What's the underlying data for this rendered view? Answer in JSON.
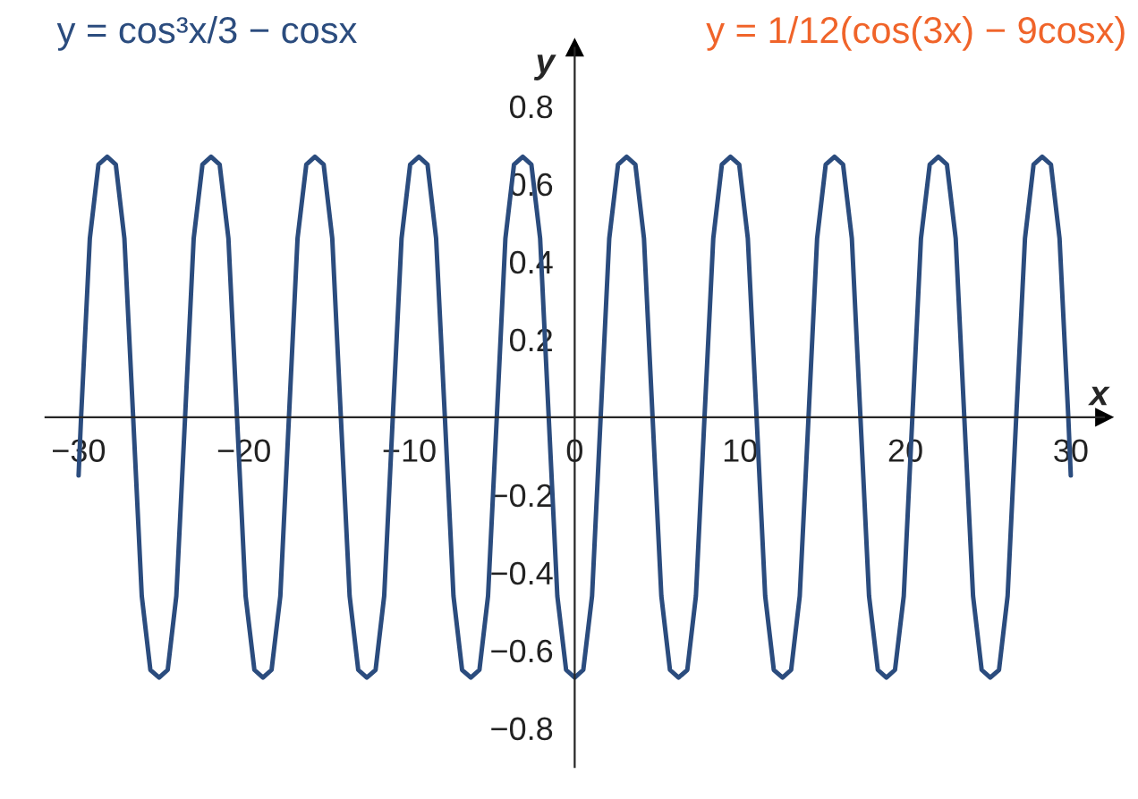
{
  "chart_data": {
    "type": "line",
    "xlabel": "x",
    "ylabel": "y",
    "annotations": [
      "y = cos³x/3 − cosx",
      "y = 1/12(cos(3x) − 9cosx)"
    ],
    "series": [
      {
        "color": "#2b4c7e",
        "x": [
          -30,
          -29.85,
          -29.32,
          -28.8,
          -28.27,
          -27.75,
          -27.23,
          -26.7,
          -26.18,
          -25.66,
          -25.13,
          -24.61,
          -24.09,
          -23.56,
          -23.04,
          -22.51,
          -21.99,
          -21.47,
          -20.94,
          -20.42,
          -19.9,
          -19.37,
          -18.85,
          -18.33,
          -17.8,
          -17.28,
          -16.76,
          -16.23,
          -15.71,
          -15.18,
          -14.66,
          -14.14,
          -13.61,
          -13.09,
          -12.57,
          -12.04,
          -11.52,
          -11.0,
          -10.47,
          -9.95,
          -9.42,
          -8.9,
          -8.38,
          -7.85,
          -7.33,
          -6.81,
          -6.28,
          -5.76,
          -5.24,
          -4.71,
          -4.19,
          -3.67,
          -3.14,
          -2.62,
          -2.09,
          -1.57,
          -1.05,
          -0.52,
          0,
          0.52,
          1.05,
          1.57,
          2.09,
          2.62,
          3.14,
          3.67,
          4.19,
          4.71,
          5.24,
          5.76,
          6.28,
          6.81,
          7.33,
          7.85,
          8.38,
          8.9,
          9.42,
          9.95,
          10.47,
          11.0,
          11.52,
          12.04,
          12.57,
          13.09,
          13.61,
          14.14,
          14.66,
          15.18,
          15.71,
          16.23,
          16.76,
          17.28,
          17.8,
          18.33,
          18.85,
          19.37,
          19.9,
          20.42,
          20.94,
          21.47,
          21.99,
          22.51,
          23.04,
          23.56,
          24.09,
          24.61,
          25.13,
          25.66,
          26.18,
          26.7,
          27.23,
          27.75,
          28.27,
          28.8,
          29.32,
          29.85,
          30
        ],
        "values": [
          -0.15,
          0,
          0.46,
          0.65,
          0.67,
          0.65,
          0.46,
          0,
          -0.46,
          -0.65,
          -0.67,
          -0.65,
          -0.46,
          0,
          0.46,
          0.65,
          0.67,
          0.65,
          0.46,
          0,
          -0.46,
          -0.65,
          -0.67,
          -0.65,
          -0.46,
          0,
          0.46,
          0.65,
          0.67,
          0.65,
          0.46,
          0,
          -0.46,
          -0.65,
          -0.67,
          -0.65,
          -0.46,
          0,
          0.46,
          0.65,
          0.67,
          0.65,
          0.46,
          0,
          -0.46,
          -0.65,
          -0.67,
          -0.65,
          -0.46,
          0,
          0.46,
          0.65,
          0.67,
          0.65,
          0.46,
          0,
          -0.46,
          -0.65,
          -0.67,
          -0.65,
          -0.46,
          0,
          0.46,
          0.65,
          0.67,
          0.65,
          0.46,
          0,
          -0.46,
          -0.65,
          -0.67,
          -0.65,
          -0.46,
          0,
          0.46,
          0.65,
          0.67,
          0.65,
          0.46,
          0,
          -0.46,
          -0.65,
          -0.67,
          -0.65,
          -0.46,
          0,
          0.46,
          0.65,
          0.67,
          0.65,
          0.46,
          0,
          -0.46,
          -0.65,
          -0.67,
          -0.65,
          -0.46,
          0,
          0.46,
          0.65,
          0.67,
          0.65,
          0.46,
          0,
          -0.46,
          -0.65,
          -0.67,
          -0.65,
          -0.46,
          0,
          0.46,
          0.65,
          0.67,
          0.65,
          0.46,
          0,
          -0.15
        ]
      }
    ],
    "xlim": [
      -32,
      32
    ],
    "ylim": [
      -0.9,
      0.95
    ],
    "xticks": [
      {
        "value": -30,
        "label": "−30"
      },
      {
        "value": -20,
        "label": "−20"
      },
      {
        "value": -10,
        "label": "−10"
      },
      {
        "value": 0,
        "label": "0"
      },
      10,
      20,
      30
    ],
    "yticks": [
      {
        "value": -0.8,
        "label": "−0.8"
      },
      {
        "value": -0.6,
        "label": "−0.6"
      },
      {
        "value": -0.4,
        "label": "−0.4"
      },
      {
        "value": -0.2,
        "label": "−0.2"
      },
      0.2,
      0.4,
      0.6,
      0.8
    ],
    "grid": false,
    "legend": false,
    "line_style": "solid",
    "marker": "none"
  }
}
